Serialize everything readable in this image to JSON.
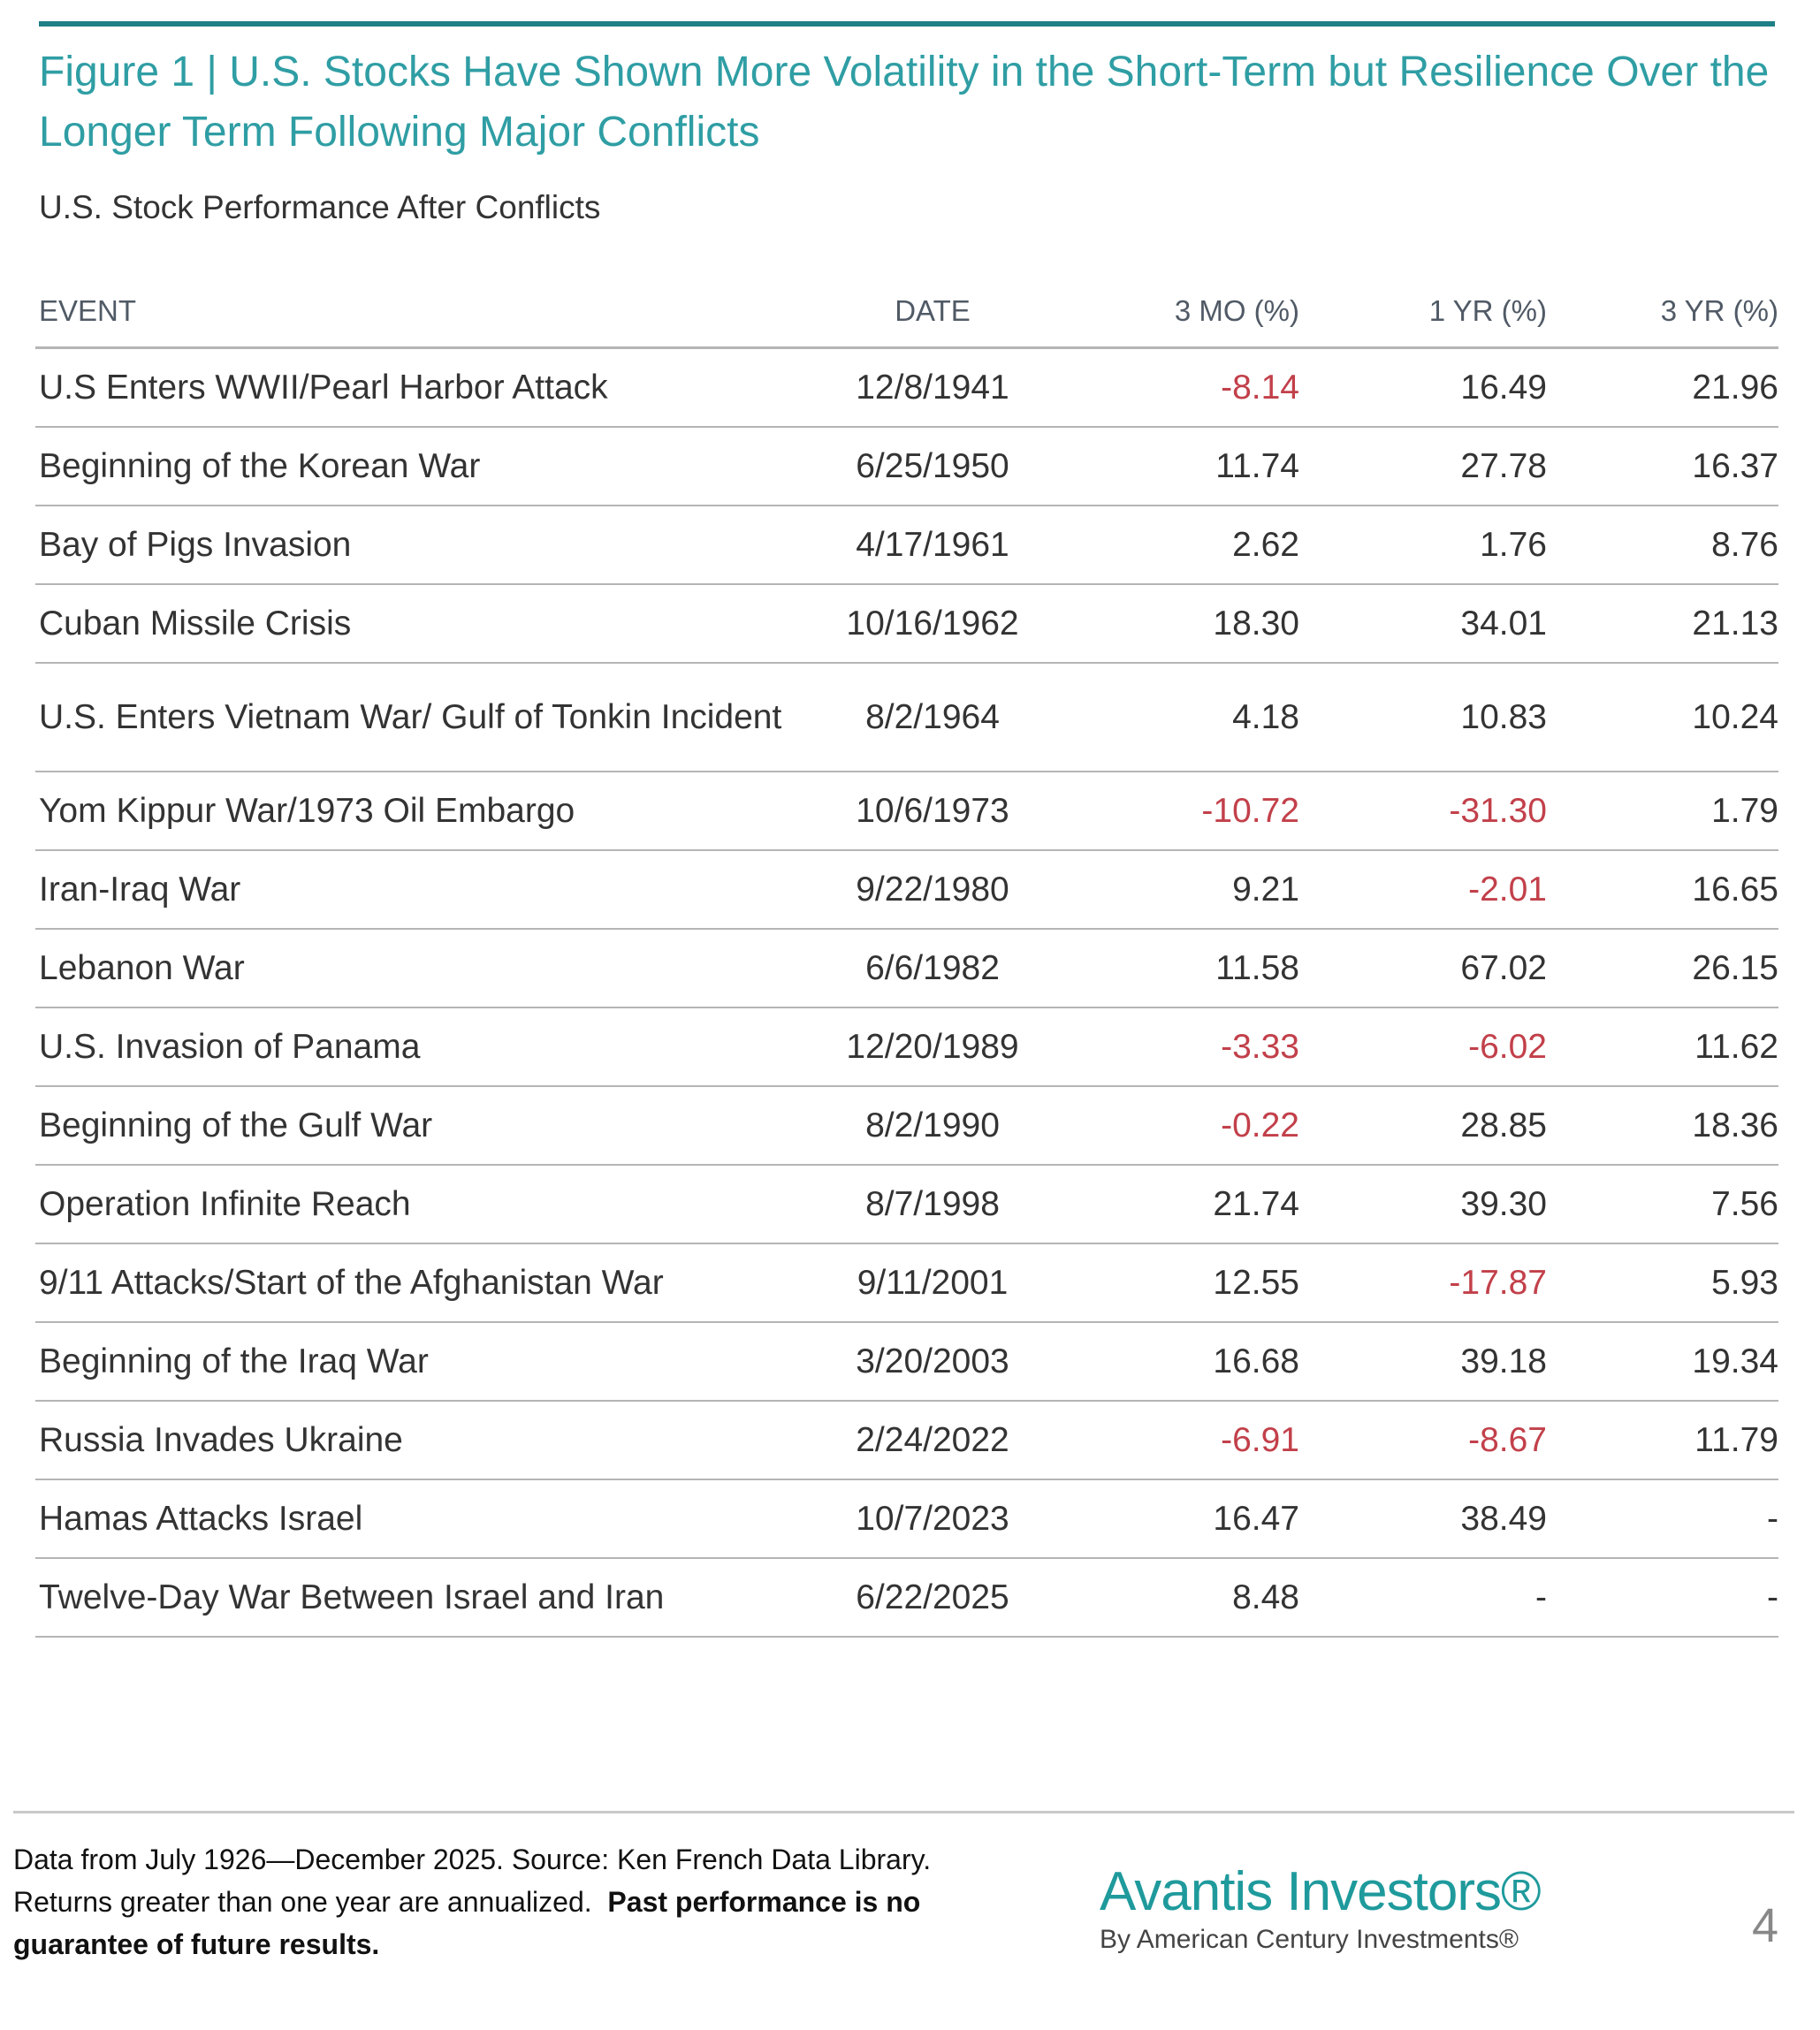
{
  "title": "Figure 1 | U.S. Stocks Have Shown More Volatility in the Short-Term but Resilience Over the Longer Term Following Major Conflicts",
  "subtitle": "U.S. Stock Performance After Conflicts",
  "colors": {
    "teal": "#2f9ea4",
    "negative": "#c2404a",
    "text": "#333333"
  },
  "table": {
    "headers": [
      "EVENT",
      "DATE",
      "3 MO (%)",
      "1 YR (%)",
      "3 YR (%)"
    ],
    "rows": [
      [
        "U.S Enters WWII/Pearl Harbor Attack",
        "12/8/1941",
        "-8.14",
        "16.49",
        "21.96"
      ],
      [
        "Beginning of the Korean War",
        "6/25/1950",
        "11.74",
        "27.78",
        "16.37"
      ],
      [
        "Bay of Pigs Invasion",
        "4/17/1961",
        "2.62",
        "1.76",
        "8.76"
      ],
      [
        "Cuban Missile Crisis",
        "10/16/1962",
        "18.30",
        "34.01",
        "21.13"
      ],
      [
        "U.S. Enters Vietnam War/ Gulf of Tonkin Incident",
        "8/2/1964",
        "4.18",
        "10.83",
        "10.24"
      ],
      [
        "Yom Kippur War/1973 Oil Embargo",
        "10/6/1973",
        "-10.72",
        "-31.30",
        "1.79"
      ],
      [
        "Iran-Iraq War",
        "9/22/1980",
        "9.21",
        "-2.01",
        "16.65"
      ],
      [
        "Lebanon War",
        "6/6/1982",
        "11.58",
        "67.02",
        "26.15"
      ],
      [
        "U.S. Invasion of Panama",
        "12/20/1989",
        "-3.33",
        "-6.02",
        "11.62"
      ],
      [
        "Beginning of the Gulf War",
        "8/2/1990",
        "-0.22",
        "28.85",
        "18.36"
      ],
      [
        "Operation Infinite Reach",
        "8/7/1998",
        "21.74",
        "39.30",
        "7.56"
      ],
      [
        "9/11 Attacks/Start of the Afghanistan War",
        "9/11/2001",
        "12.55",
        "-17.87",
        "5.93"
      ],
      [
        "Beginning of the Iraq War",
        "3/20/2003",
        "16.68",
        "39.18",
        "19.34"
      ],
      [
        "Russia Invades Ukraine",
        "2/24/2022",
        "-6.91",
        "-8.67",
        "11.79"
      ],
      [
        "Hamas Attacks Israel",
        "10/7/2023",
        "16.47",
        "38.49",
        "-"
      ],
      [
        "Twelve-Day War Between Israel and Iran",
        "6/22/2025",
        "8.48",
        "-",
        "-"
      ]
    ]
  },
  "footer": {
    "note": "Data from July 1926—December 2025. Source: Ken French Data Library. Returns greater than one year are annualized.",
    "note_bold": "Past performance is no guarantee of future results.",
    "logo_main": "Avantis Investors®",
    "logo_sub": "By American Century Investments®",
    "page_number": "4"
  }
}
